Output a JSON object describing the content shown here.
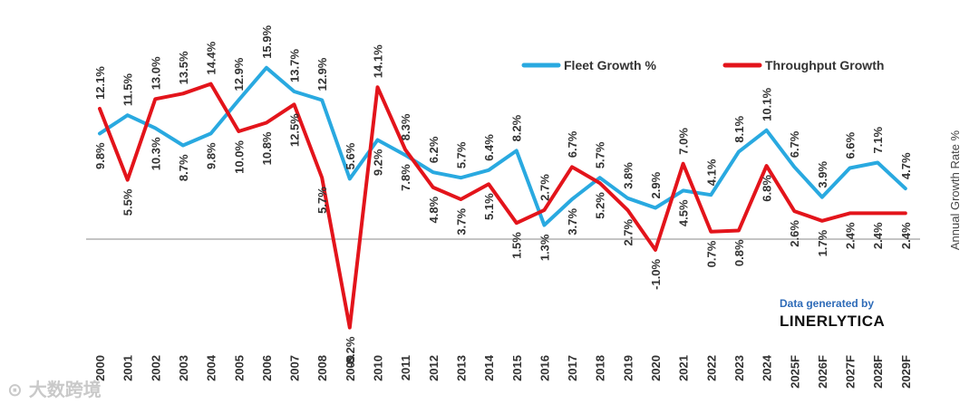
{
  "chart_data": {
    "type": "line",
    "title": "",
    "xlabel": "",
    "ylabel": "Annual Growth Rate %",
    "ylim": [
      -10,
      20
    ],
    "categories": [
      "2000",
      "2001",
      "2002",
      "2003",
      "2004",
      "2005",
      "2006",
      "2007",
      "2008",
      "2009",
      "2010",
      "2011",
      "2012",
      "2013",
      "2014",
      "2015",
      "2016",
      "2017",
      "2018",
      "2019",
      "2020",
      "2021",
      "2022",
      "2023",
      "2024",
      "2025F",
      "2026F",
      "2027F",
      "2028F",
      "2029F"
    ],
    "series": [
      {
        "name": "Fleet Growth %",
        "color": "#29a9e0",
        "values": [
          9.8,
          11.5,
          10.3,
          8.7,
          9.8,
          12.9,
          15.9,
          13.7,
          12.9,
          5.6,
          9.2,
          7.8,
          6.2,
          5.7,
          6.4,
          8.2,
          1.3,
          3.7,
          5.7,
          3.8,
          2.9,
          4.5,
          4.1,
          8.1,
          10.1,
          6.7,
          3.9,
          6.6,
          7.1,
          4.7
        ],
        "labels": [
          "9.8%",
          "11.5%",
          "10.3%",
          "8.7%",
          "9.8%",
          "12.9%",
          "15.9%",
          "13.7%",
          "12.9%",
          "5.6%",
          "9.2%",
          "7.8%",
          "6.2%",
          "5.7%",
          "6.4%",
          "8.2%",
          "1.3%",
          "3.7%",
          "5.7%",
          "3.8%",
          "2.9%",
          "4.5%",
          "4.1%",
          "8.1%",
          "10.1%",
          "6.7%",
          "3.9%",
          "6.6%",
          "7.1%",
          "4.7%"
        ]
      },
      {
        "name": "Throughput Growth",
        "color": "#e3141b",
        "values": [
          12.1,
          5.5,
          13.0,
          13.5,
          14.4,
          10.0,
          10.8,
          12.5,
          5.7,
          -8.2,
          14.1,
          8.3,
          4.8,
          3.7,
          5.1,
          1.5,
          2.7,
          6.7,
          5.2,
          2.7,
          -1.0,
          7.0,
          0.7,
          0.8,
          6.8,
          2.6,
          1.7,
          2.4,
          2.4,
          2.4
        ],
        "labels": [
          "12.1%",
          "5.5%",
          "13.0%",
          "13.5%",
          "14.4%",
          "10.0%",
          "10.8%",
          "12.5%",
          "5.7%",
          "-8.2%",
          "14.1%",
          "8.3%",
          "4.8%",
          "3.7%",
          "5.1%",
          "1.5%",
          "2.7%",
          "6.7%",
          "5.2%",
          "2.7%",
          "-1.0%",
          "7.0%",
          "0.7%",
          "0.8%",
          "6.8%",
          "2.6%",
          "1.7%",
          "2.4%",
          "2.4%",
          "2.4%"
        ]
      }
    ],
    "legend": "top-right"
  },
  "credit": {
    "line1": "Data generated by",
    "line2": "LINERLYTICA"
  },
  "watermark": "⊙ 大数跨境"
}
